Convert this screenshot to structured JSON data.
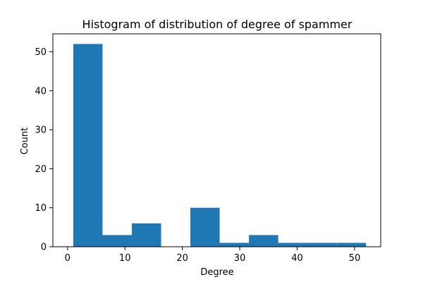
{
  "chart_data": {
    "type": "bar",
    "subtype": "histogram",
    "title": "Histogram of distribution of degree of spammer",
    "xlabel": "Degree",
    "ylabel": "Count",
    "bin_edges": [
      1,
      6.1,
      11.2,
      16.3,
      21.4,
      26.5,
      31.6,
      36.7,
      41.8,
      46.9,
      52
    ],
    "values": [
      52,
      3,
      6,
      0,
      10,
      1,
      3,
      1,
      1,
      1
    ],
    "xlim": [
      -2.55,
      54.55
    ],
    "ylim": [
      0,
      54.6
    ],
    "xticks": [
      0,
      10,
      20,
      30,
      40,
      50
    ],
    "yticks": [
      0,
      10,
      20,
      30,
      40,
      50
    ],
    "bar_color": "#1f77b4",
    "grid": false
  }
}
